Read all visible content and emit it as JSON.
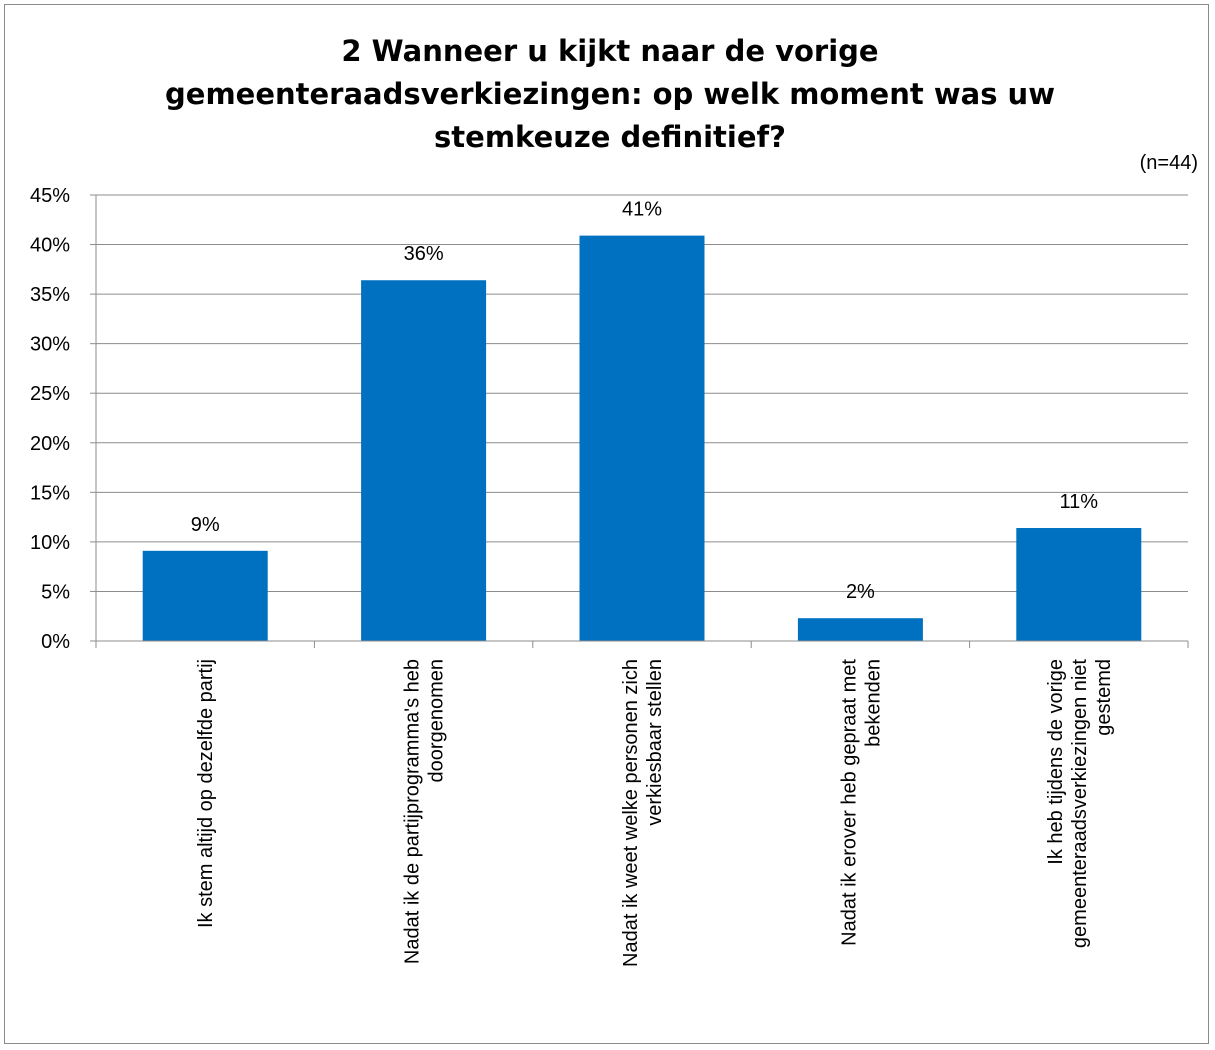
{
  "chart_data": {
    "type": "bar",
    "title": "2 Wanneer u kijkt naar de vorige gemeenteraadsverkiezingen: op welk moment was uw stemkeuze definitief?",
    "note": "(n=44)",
    "categories": [
      [
        "Ik stem altijd op dezelfde partij"
      ],
      [
        "Nadat ik de partijprogramma's heb",
        "doorgenomen"
      ],
      [
        "Nadat ik weet welke personen zich",
        "verkiesbaar stellen"
      ],
      [
        "Nadat ik erover heb gepraat met",
        "bekenden"
      ],
      [
        "Ik heb tijdens de vorige",
        "gemeenteraadsverkiezingen niet",
        "gestemd"
      ]
    ],
    "values": [
      9.1,
      36.4,
      40.9,
      2.3,
      11.4
    ],
    "value_labels": [
      "9%",
      "36%",
      "41%",
      "2%",
      "11%"
    ],
    "ylim": [
      0,
      45
    ],
    "yticks": [
      "0%",
      "5%",
      "10%",
      "15%",
      "20%",
      "25%",
      "30%",
      "35%",
      "40%",
      "45%"
    ],
    "bar_color": "#0070C0",
    "grid": true,
    "legend": "none"
  }
}
